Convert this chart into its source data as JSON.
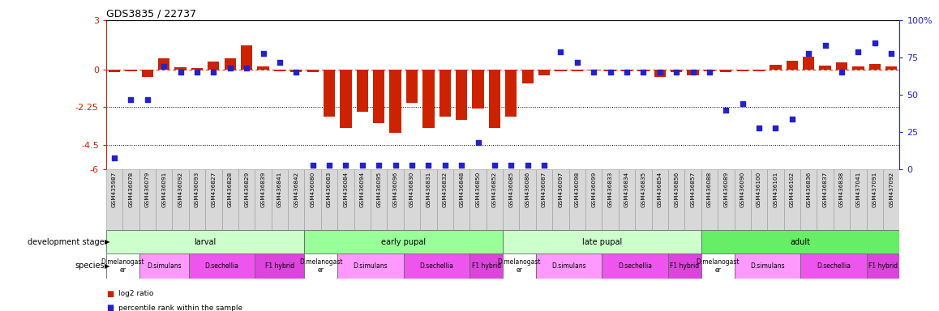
{
  "title": "GDS3835 / 22737",
  "sample_ids": [
    "GSM435987",
    "GSM436078",
    "GSM436079",
    "GSM436091",
    "GSM436092",
    "GSM436093",
    "GSM436827",
    "GSM436828",
    "GSM436829",
    "GSM436839",
    "GSM436841",
    "GSM436842",
    "GSM436080",
    "GSM436083",
    "GSM436084",
    "GSM436094",
    "GSM436095",
    "GSM436096",
    "GSM436830",
    "GSM436831",
    "GSM436832",
    "GSM436848",
    "GSM436850",
    "GSM436852",
    "GSM436085",
    "GSM436086",
    "GSM436087",
    "GSM436097",
    "GSM436098",
    "GSM436099",
    "GSM436833",
    "GSM436834",
    "GSM436835",
    "GSM436854",
    "GSM436856",
    "GSM436857",
    "GSM436088",
    "GSM436089",
    "GSM436090",
    "GSM436100",
    "GSM436101",
    "GSM436102",
    "GSM436836",
    "GSM436837",
    "GSM436838",
    "GSM437041",
    "GSM437091",
    "GSM437092"
  ],
  "log2_ratio": [
    -0.15,
    -0.08,
    -0.4,
    0.7,
    0.15,
    0.1,
    0.5,
    0.7,
    1.5,
    0.2,
    -0.1,
    -0.15,
    -0.15,
    -2.8,
    -3.5,
    -2.5,
    -3.2,
    -3.8,
    -2.0,
    -3.5,
    -2.8,
    -3.0,
    -2.3,
    -3.5,
    -2.8,
    -0.8,
    -0.3,
    -0.1,
    -0.1,
    -0.05,
    -0.1,
    -0.1,
    -0.1,
    -0.4,
    -0.15,
    -0.3,
    -0.1,
    -0.15,
    -0.1,
    -0.1,
    0.3,
    0.55,
    0.8,
    0.25,
    0.45,
    0.2,
    0.35,
    0.2
  ],
  "percentile_rank": [
    8,
    47,
    47,
    69,
    65,
    65,
    65,
    68,
    68,
    78,
    72,
    65,
    3,
    3,
    3,
    3,
    3,
    3,
    3,
    3,
    3,
    3,
    18,
    3,
    3,
    3,
    3,
    79,
    72,
    65,
    65,
    65,
    65,
    65,
    65,
    65,
    65,
    40,
    44,
    28,
    28,
    34,
    78,
    83,
    65,
    79,
    85,
    78
  ],
  "development_stages": [
    {
      "label": "larval",
      "start": 0,
      "end": 11,
      "color": "#ccffcc"
    },
    {
      "label": "early pupal",
      "start": 12,
      "end": 23,
      "color": "#99ff99"
    },
    {
      "label": "late pupal",
      "start": 24,
      "end": 35,
      "color": "#ccffcc"
    },
    {
      "label": "adult",
      "start": 36,
      "end": 47,
      "color": "#66ee66"
    }
  ],
  "species_groups": [
    {
      "label": "D.melanogast\ner",
      "start": 0,
      "end": 1,
      "color": "#ffffff"
    },
    {
      "label": "D.simulans",
      "start": 2,
      "end": 4,
      "color": "#ff99ff"
    },
    {
      "label": "D.sechellia",
      "start": 5,
      "end": 8,
      "color": "#ee55ee"
    },
    {
      "label": "F1 hybrid",
      "start": 9,
      "end": 11,
      "color": "#dd44dd"
    },
    {
      "label": "D.melanogast\ner",
      "start": 12,
      "end": 13,
      "color": "#ffffff"
    },
    {
      "label": "D.simulans",
      "start": 14,
      "end": 17,
      "color": "#ff99ff"
    },
    {
      "label": "D.sechellia",
      "start": 18,
      "end": 21,
      "color": "#ee55ee"
    },
    {
      "label": "F1 hybrid",
      "start": 22,
      "end": 23,
      "color": "#dd44dd"
    },
    {
      "label": "D.melanogast\ner",
      "start": 24,
      "end": 25,
      "color": "#ffffff"
    },
    {
      "label": "D.simulans",
      "start": 26,
      "end": 29,
      "color": "#ff99ff"
    },
    {
      "label": "D.sechellia",
      "start": 30,
      "end": 33,
      "color": "#ee55ee"
    },
    {
      "label": "F1 hybrid",
      "start": 34,
      "end": 35,
      "color": "#dd44dd"
    },
    {
      "label": "D.melanogast\ner",
      "start": 36,
      "end": 37,
      "color": "#ffffff"
    },
    {
      "label": "D.simulans",
      "start": 38,
      "end": 41,
      "color": "#ff99ff"
    },
    {
      "label": "D.sechellia",
      "start": 42,
      "end": 45,
      "color": "#ee55ee"
    },
    {
      "label": "F1 hybrid",
      "start": 46,
      "end": 47,
      "color": "#dd44dd"
    }
  ],
  "bar_color": "#cc2200",
  "dot_color": "#2222cc",
  "left_ylim": [
    -6,
    3
  ],
  "left_yticks": [
    3,
    0,
    -2.25,
    -4.5,
    -6
  ],
  "right_ylim": [
    0,
    100
  ],
  "right_yticks": [
    0,
    25,
    50,
    75,
    100
  ],
  "dotted_lines": [
    -2.25,
    -4.5
  ],
  "stage_colors": {
    "larval": "#ccffcc",
    "early pupal": "#99ff99",
    "late pupal": "#ccffcc",
    "adult": "#66ee66"
  }
}
